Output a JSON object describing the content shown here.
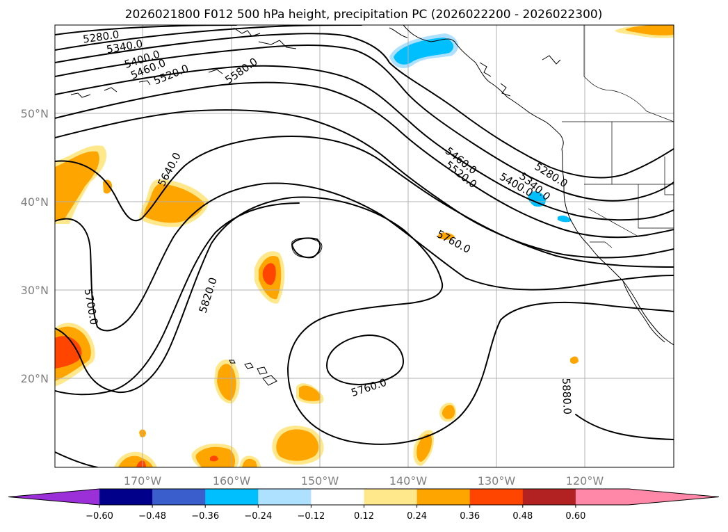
{
  "title": "2026021800 F012 500 hPa height, precipitation PC (2026022200 - 2026022300)",
  "lat_labels": [
    "50°N",
    "40°N",
    "30°N",
    "20°N"
  ],
  "lon_labels": [
    "170°W",
    "160°W",
    "150°W",
    "140°W",
    "130°W",
    "120°W"
  ],
  "contour_labels": [
    "5280.0",
    "5340.0",
    "5400.0",
    "5460.0",
    "5520.0",
    "5580.0",
    "5640.0",
    "5700.0",
    "5820.0",
    "5760.0",
    "5880.0",
    "5460.0",
    "5520.0",
    "5400.0",
    "5340.0",
    "5280.0",
    "5760.0"
  ],
  "colorbar": {
    "ticks": [
      "−0.60",
      "−0.48",
      "−0.36",
      "−0.24",
      "−0.12",
      "0.12",
      "0.24",
      "0.36",
      "0.48",
      "0.60"
    ],
    "colors": [
      "#9b30d9",
      "#00008b",
      "#3a5fcd",
      "#00bfff",
      "#aee0ff",
      "#ffffff",
      "#ffe88c",
      "#ffa500",
      "#ff4500",
      "#b22222",
      "#ff88a8",
      "#ff88a8"
    ]
  },
  "precip_colors": {
    "light_yellow": "#ffe88c",
    "orange": "#ffa500",
    "red_orange": "#ff4500",
    "sky_blue": "#00bfff",
    "light_blue": "#aee0ff"
  }
}
